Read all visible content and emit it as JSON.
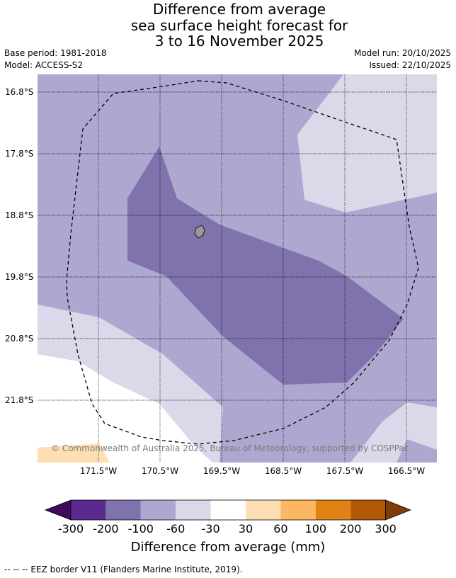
{
  "title": {
    "line1": "Difference from average",
    "line2": "sea surface height forecast for",
    "line3": "3 to 16 November 2025"
  },
  "meta": {
    "base_period": "Base period: 1981-2018",
    "model": "Model: ACCESS-S2",
    "model_run": "Model run: 20/10/2025",
    "issued": "Issued: 22/10/2025"
  },
  "map": {
    "latitude_labels": [
      "16.8°S",
      "17.8°S",
      "18.8°S",
      "19.8°S",
      "20.8°S",
      "21.8°S"
    ],
    "longitude_labels": [
      "171.5°W",
      "170.5°W",
      "169.5°W",
      "168.5°W",
      "167.5°W",
      "166.5°W"
    ],
    "attribution": "© Commonwealth of Australia 2025, Bureau of Meteorology, supported by COSPPac",
    "colors": {
      "c_m200_m100": "#7f72ad",
      "c_m100_m60": "#ada8d0",
      "c_m60_m30": "#d9d9ea",
      "c_m30_30": "#ffffff",
      "c_30_60": "#fedeb3",
      "land": "#999999"
    }
  },
  "colorbar": {
    "tick_labels": [
      "-300",
      "-200",
      "-100",
      "-60",
      "-30",
      "30",
      "60",
      "100",
      "200",
      "300"
    ],
    "bin_colors": [
      "#3f0a5a",
      "#5b2a8f",
      "#7f72ad",
      "#ada8d0",
      "#d9d9ea",
      "#ffffff",
      "#fedeb3",
      "#fbb761",
      "#e08214",
      "#b35806",
      "#7f3b08"
    ],
    "title": "Difference from average (mm)"
  },
  "footnote": "--  --  -- EEZ border V11 (Flanders Marine Institute, 2019)."
}
